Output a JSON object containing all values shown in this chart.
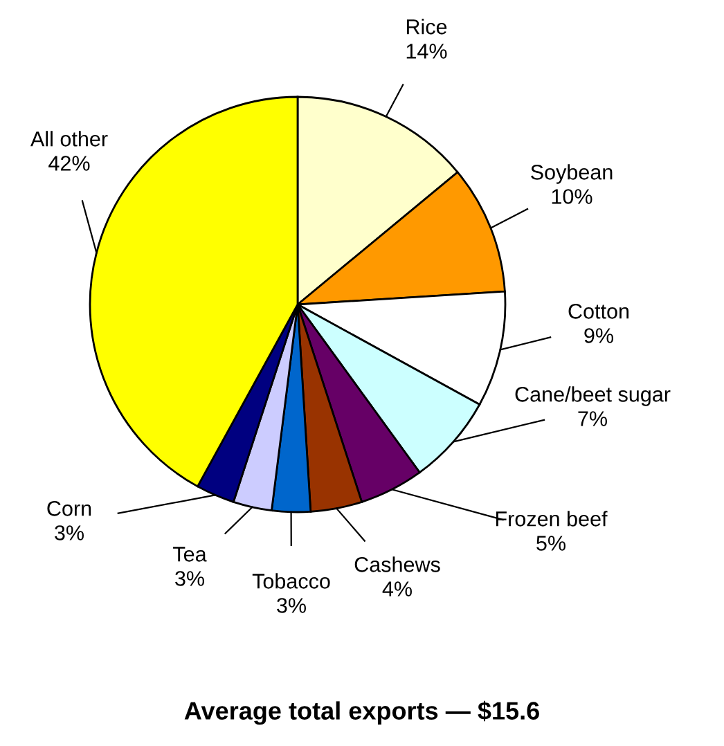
{
  "chart_data": {
    "type": "pie",
    "title": "Average total exports — $15.6",
    "categories": [
      "Rice",
      "Soybean",
      "Cotton",
      "Cane/beet sugar",
      "Frozen beef",
      "Cashews",
      "Tobacco",
      "Tea",
      "Corn",
      "All other"
    ],
    "values": [
      14,
      10,
      9,
      7,
      5,
      4,
      3,
      3,
      3,
      42
    ],
    "colors": [
      "#ffffcc",
      "#ff9900",
      "#ffffff",
      "#ccffff",
      "#660066",
      "#993300",
      "#0066cc",
      "#ccccff",
      "#000080",
      "#ffff00"
    ],
    "value_labels": [
      "14%",
      "10%",
      "9%",
      "7%",
      "5%",
      "4%",
      "3%",
      "3%",
      "3%",
      "42%"
    ]
  }
}
